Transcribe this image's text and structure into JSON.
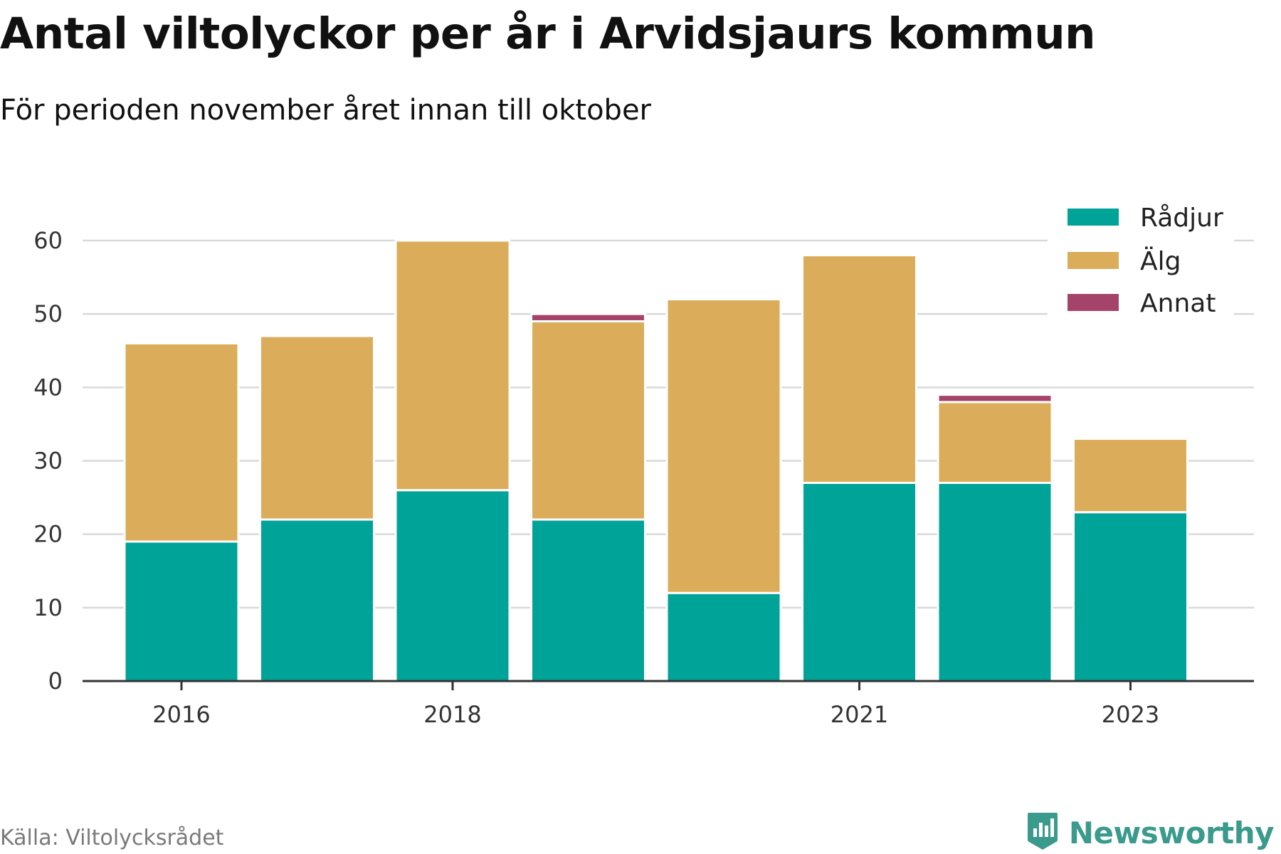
{
  "title": "Antal viltolyckor per år i Arvidsjaurs kommun",
  "subtitle": "För perioden november året innan till oktober",
  "source": "Källa: Viltolycksrådet",
  "brand": {
    "name": "Newsworthy",
    "icon": "newsworthy-logo-icon",
    "color": "#3a9a8c"
  },
  "chart_data": {
    "type": "bar",
    "stacked": true,
    "categories": [
      "2016",
      "2017",
      "2018",
      "2019",
      "2020",
      "2021",
      "2022",
      "2023"
    ],
    "x_tick_labels": [
      "2016",
      "",
      "2018",
      "",
      "",
      "2021",
      "",
      "2023"
    ],
    "series": [
      {
        "name": "Rådjur",
        "color": "#00a398",
        "values": [
          19,
          22,
          26,
          22,
          12,
          27,
          27,
          23
        ]
      },
      {
        "name": "Älg",
        "color": "#dbad5a",
        "values": [
          27,
          25,
          34,
          27,
          40,
          31,
          11,
          10
        ]
      },
      {
        "name": "Annat",
        "color": "#a5446a",
        "values": [
          0,
          0,
          0,
          1,
          0,
          0,
          1,
          0
        ]
      }
    ],
    "ylim": [
      0,
      60
    ],
    "yticks": [
      0,
      10,
      20,
      30,
      40,
      50,
      60
    ],
    "grid": true,
    "legend_position": "top-right"
  }
}
